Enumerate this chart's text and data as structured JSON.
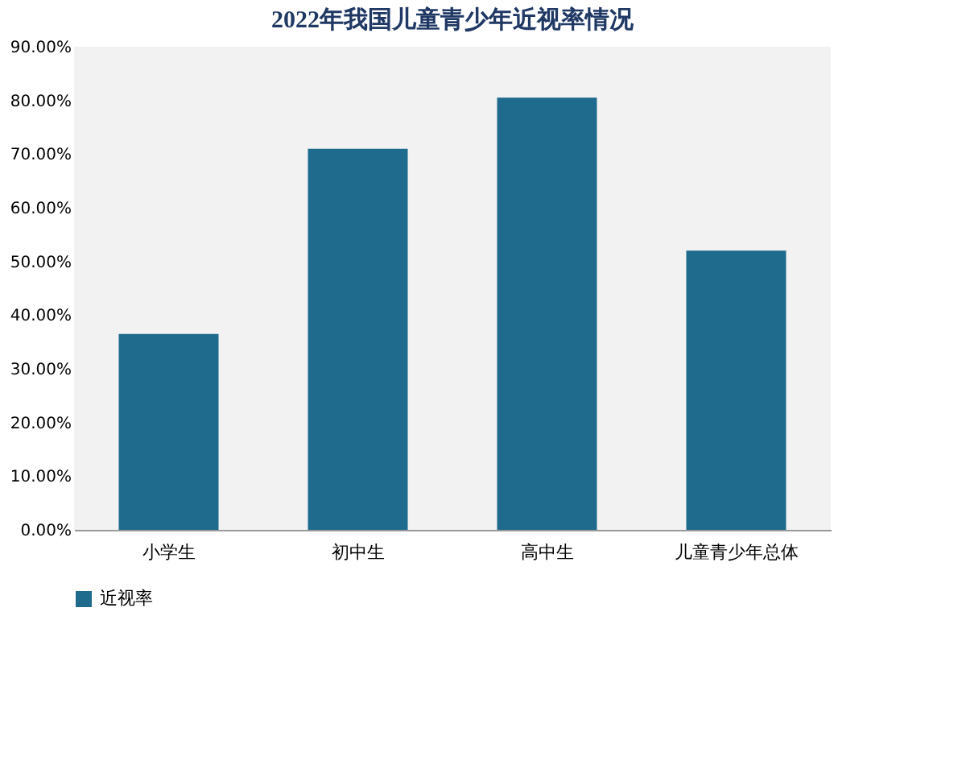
{
  "chart_data": {
    "type": "bar",
    "title": "2022年我国儿童青少年近视率情况",
    "categories": [
      "小学生",
      "初中生",
      "高中生",
      "儿童青少年总体"
    ],
    "series": [
      {
        "name": "近视率",
        "color": "#1f6b8e",
        "values": [
          36.5,
          71,
          80.5,
          52
        ]
      }
    ],
    "ylim": [
      0,
      90
    ],
    "yticks": [
      {
        "value": 0,
        "label": "0.00%"
      },
      {
        "value": 10,
        "label": "10.00%"
      },
      {
        "value": 20,
        "label": "20.00%"
      },
      {
        "value": 30,
        "label": "30.00%"
      },
      {
        "value": 40,
        "label": "40.00%"
      },
      {
        "value": 50,
        "label": "50.00%"
      },
      {
        "value": 60,
        "label": "60.00%"
      },
      {
        "value": 70,
        "label": "70.00%"
      },
      {
        "value": 80,
        "label": "80.00%"
      },
      {
        "value": 90,
        "label": "90.00%"
      }
    ],
    "grid": false,
    "legend": "bottom"
  }
}
